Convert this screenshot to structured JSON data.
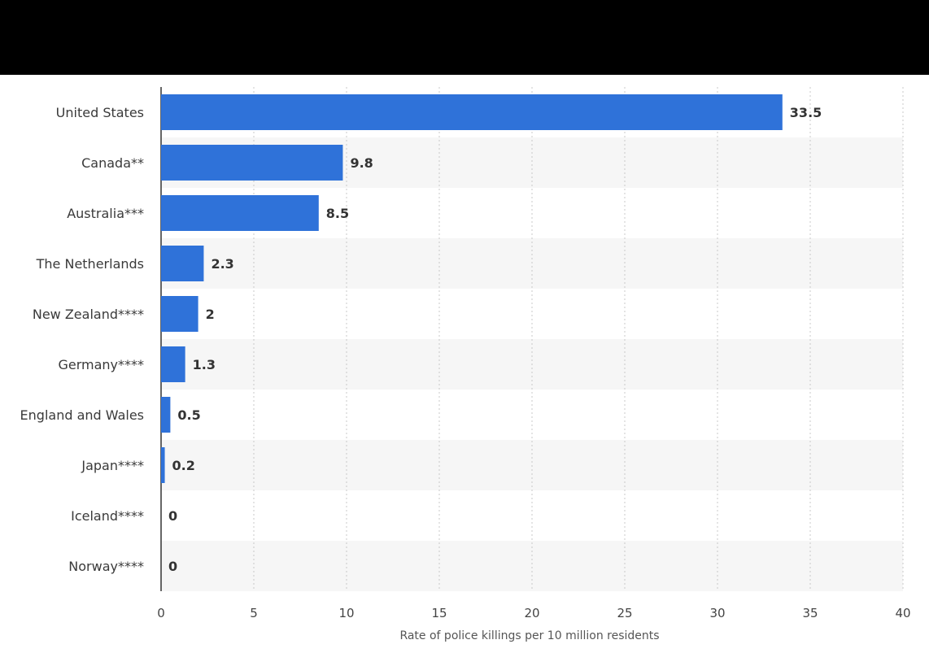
{
  "chart_data": {
    "type": "bar",
    "orientation": "horizontal",
    "categories": [
      "United States",
      "Canada**",
      "Australia***",
      "The Netherlands",
      "New Zealand****",
      "Germany****",
      "England and Wales",
      "Japan****",
      "Iceland****",
      "Norway****"
    ],
    "values": [
      33.5,
      9.8,
      8.5,
      2.3,
      2,
      1.3,
      0.5,
      0.2,
      0,
      0
    ],
    "value_labels": [
      "33.5",
      "9.8",
      "8.5",
      "2.3",
      "2",
      "1.3",
      "0.5",
      "0.2",
      "0",
      "0"
    ],
    "xlabel": "Rate of police killings per 10 million residents",
    "xlim": [
      0,
      40
    ],
    "xticks": [
      0,
      5,
      10,
      15,
      20,
      25,
      30,
      35,
      40
    ],
    "grid": true,
    "alternating_row_bands": true,
    "bar_color": "#2f72d9",
    "band_color": "#f6f6f6",
    "banner_color": "#000000"
  }
}
